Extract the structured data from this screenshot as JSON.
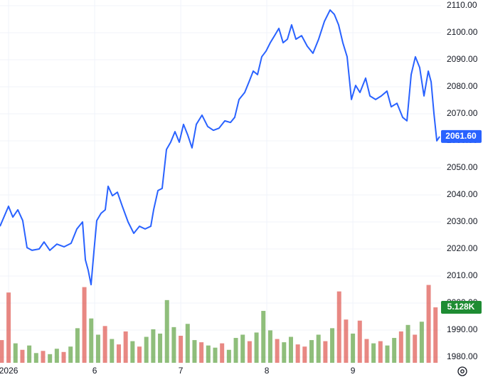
{
  "chart_data": {
    "type": "line",
    "xlim": [
      4.9,
      10.024
    ],
    "xticks": [
      {
        "value": 5,
        "label": "2026"
      },
      6,
      7,
      8,
      9
    ],
    "ylim": [
      1977.9,
      2112.1
    ],
    "yticks": [
      {
        "value": 1980,
        "label": "1980.00"
      },
      {
        "value": 1990,
        "label": "1990.00"
      },
      {
        "value": 2000,
        "label": "2000.00"
      },
      {
        "value": 2010,
        "label": "2010.00"
      },
      {
        "value": 2020,
        "label": "2020.00"
      },
      {
        "value": 2030,
        "label": "2030.00"
      },
      {
        "value": 2040,
        "label": "2040.00"
      },
      {
        "value": 2050,
        "label": "2050.00"
      },
      {
        "value": 2060,
        "label": "2060.00"
      },
      {
        "value": 2070,
        "label": "2070.00"
      },
      {
        "value": 2080,
        "label": "2080.00"
      },
      {
        "value": 2090,
        "label": "2090.00"
      },
      {
        "value": 2100,
        "label": "2100.00"
      },
      {
        "value": 2110,
        "label": "2110.00"
      }
    ],
    "grid": true,
    "price": {
      "color": "#2962ff",
      "x": [
        4.9,
        4.999,
        5.049,
        5.107,
        5.164,
        5.214,
        5.272,
        5.355,
        5.412,
        5.479,
        5.561,
        5.644,
        5.726,
        5.793,
        5.859,
        5.892,
        5.925,
        5.958,
        5.991,
        6.024,
        6.074,
        6.123,
        6.156,
        6.206,
        6.264,
        6.321,
        6.388,
        6.454,
        6.52,
        6.586,
        6.652,
        6.685,
        6.735,
        6.784,
        6.834,
        6.883,
        6.933,
        6.983,
        7.032,
        7.082,
        7.131,
        7.181,
        7.247,
        7.313,
        7.379,
        7.445,
        7.512,
        7.578,
        7.627,
        7.677,
        7.743,
        7.793,
        7.842,
        7.892,
        7.941,
        7.991,
        8.04,
        8.09,
        8.14,
        8.189,
        8.239,
        8.288,
        8.338,
        8.404,
        8.47,
        8.536,
        8.602,
        8.669,
        8.735,
        8.784,
        8.834,
        8.883,
        8.933,
        8.983,
        9.032,
        9.082,
        9.148,
        9.198,
        9.264,
        9.33,
        9.396,
        9.445,
        9.512,
        9.578,
        9.628,
        9.677,
        9.726,
        9.776,
        9.826,
        9.876,
        9.909,
        9.942,
        9.975,
        10.008
      ],
      "values": [
        2028.4,
        2035.8,
        2031.8,
        2034.5,
        2030.5,
        2020.5,
        2019.5,
        2020,
        2022.6,
        2019.5,
        2021.8,
        2020.8,
        2022.1,
        2027.4,
        2030,
        2016,
        2012.1,
        2006.8,
        2019,
        2030.5,
        2033.2,
        2034.5,
        2043.2,
        2039.7,
        2041,
        2035.8,
        2030,
        2025.8,
        2028.4,
        2027.4,
        2028.4,
        2034.5,
        2041.6,
        2042.4,
        2056.8,
        2059.5,
        2063.4,
        2059.5,
        2066.1,
        2062.1,
        2057.4,
        2066.1,
        2069.5,
        2065.3,
        2063.9,
        2064.7,
        2067.4,
        2066.8,
        2068.7,
        2075.3,
        2077.9,
        2081.8,
        2085.8,
        2084.5,
        2091.1,
        2093.2,
        2096.3,
        2098.9,
        2101.6,
        2096.3,
        2097.6,
        2102.9,
        2097.6,
        2098.9,
        2095,
        2092.4,
        2097.6,
        2104.2,
        2108.4,
        2106.8,
        2102.9,
        2096.3,
        2091.1,
        2075.3,
        2080.5,
        2077.9,
        2083.2,
        2076.6,
        2075.3,
        2076.6,
        2078.4,
        2072.6,
        2073.9,
        2068.7,
        2067.4,
        2084.5,
        2091.1,
        2087.1,
        2076.6,
        2085.8,
        2081.8,
        2070,
        2060,
        2061.6
      ]
    },
    "last_price": {
      "value": 2061.6,
      "label": "2061.60",
      "color": "#2962ff"
    },
    "volume": {
      "vlim": [
        0,
        7.5
      ],
      "x": [
        4.92,
        5.0,
        5.08,
        5.16,
        5.24,
        5.32,
        5.4,
        5.48,
        5.56,
        5.64,
        5.72,
        5.8,
        5.88,
        5.96,
        6.04,
        6.12,
        6.2,
        6.28,
        6.36,
        6.44,
        6.52,
        6.6,
        6.68,
        6.76,
        6.84,
        6.92,
        7.0,
        7.08,
        7.16,
        7.24,
        7.32,
        7.4,
        7.48,
        7.56,
        7.64,
        7.72,
        7.8,
        7.88,
        7.96,
        8.04,
        8.12,
        8.2,
        8.28,
        8.36,
        8.44,
        8.52,
        8.6,
        8.68,
        8.76,
        8.84,
        8.92,
        9.0,
        9.08,
        9.16,
        9.24,
        9.32,
        9.4,
        9.48,
        9.56,
        9.64,
        9.72,
        9.8,
        9.88,
        9.96
      ],
      "values": [
        2.1,
        6.5,
        1.8,
        1.2,
        1.6,
        0.9,
        1.1,
        0.8,
        1.3,
        1.0,
        1.5,
        3.2,
        7.0,
        4.1,
        2.6,
        3.4,
        2.2,
        1.7,
        2.9,
        2.0,
        1.5,
        2.4,
        3.1,
        2.7,
        5.8,
        3.3,
        2.5,
        3.6,
        2.1,
        1.9,
        1.6,
        1.4,
        1.8,
        1.2,
        2.3,
        2.6,
        2.0,
        2.8,
        4.8,
        3.0,
        2.2,
        1.9,
        2.4,
        1.7,
        1.5,
        2.1,
        2.6,
        2.0,
        3.2,
        6.6,
        4.0,
        2.7,
        3.9,
        2.2,
        1.8,
        2.0,
        1.6,
        2.3,
        2.9,
        3.5,
        2.6,
        3.8,
        7.2,
        5.128
      ],
      "colors": [
        "#e0605a",
        "#e0605a",
        "#6aa84f",
        "#e0605a",
        "#6aa84f",
        "#6aa84f",
        "#e0605a",
        "#6aa84f",
        "#6aa84f",
        "#e0605a",
        "#6aa84f",
        "#6aa84f",
        "#e0605a",
        "#6aa84f",
        "#6aa84f",
        "#e0605a",
        "#6aa84f",
        "#e0605a",
        "#e0605a",
        "#6aa84f",
        "#e0605a",
        "#6aa84f",
        "#6aa84f",
        "#6aa84f",
        "#6aa84f",
        "#6aa84f",
        "#e0605a",
        "#6aa84f",
        "#6aa84f",
        "#e0605a",
        "#6aa84f",
        "#6aa84f",
        "#e0605a",
        "#6aa84f",
        "#6aa84f",
        "#6aa84f",
        "#e0605a",
        "#6aa84f",
        "#6aa84f",
        "#6aa84f",
        "#e0605a",
        "#6aa84f",
        "#6aa84f",
        "#e0605a",
        "#e0605a",
        "#6aa84f",
        "#6aa84f",
        "#e0605a",
        "#6aa84f",
        "#e0605a",
        "#e0605a",
        "#6aa84f",
        "#e0605a",
        "#e0605a",
        "#6aa84f",
        "#e0605a",
        "#6aa84f",
        "#6aa84f",
        "#e0605a",
        "#6aa84f",
        "#e0605a",
        "#6aa84f",
        "#e0605a",
        "#e0605a"
      ]
    },
    "last_volume": {
      "value": 5.128,
      "label": "5.128K",
      "color": "#1e8c33"
    }
  }
}
